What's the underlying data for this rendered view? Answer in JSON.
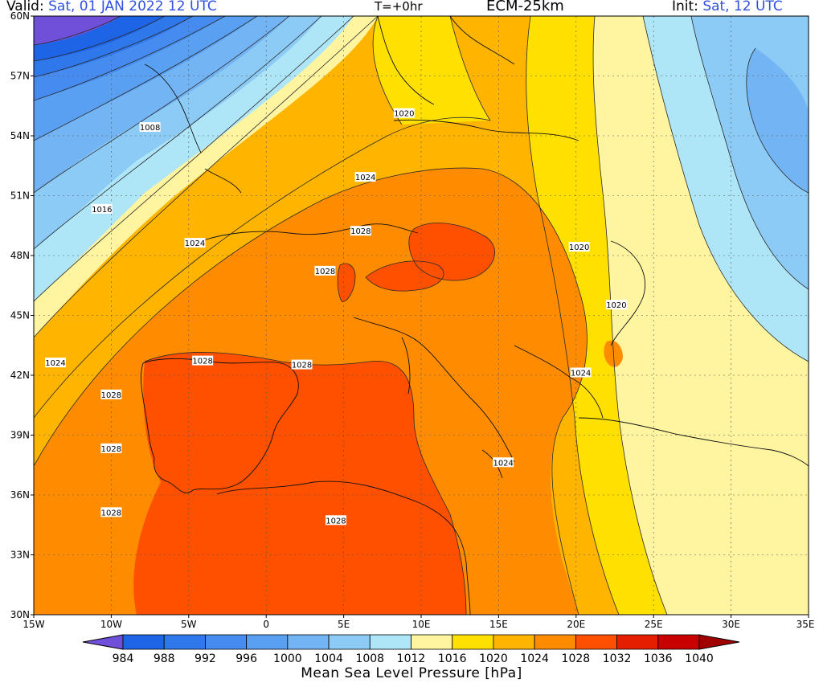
{
  "header": {
    "valid_label": "Valid:",
    "valid_value": "Sat, 01 JAN 2022 12 UTC",
    "time_step": "T=+0hr",
    "model": "ECM-25km",
    "init_label": "Init:",
    "init_value": "Sat, 12 UTC"
  },
  "map": {
    "lon_range": [
      -15,
      35
    ],
    "lat_range": [
      30,
      60
    ],
    "lon_ticks": [
      "15W",
      "10W",
      "5W",
      "0",
      "5E",
      "10E",
      "15E",
      "20E",
      "25E",
      "30E",
      "35E"
    ],
    "lat_ticks": [
      "60N",
      "57N",
      "54N",
      "51N",
      "48N",
      "45N",
      "42N",
      "39N",
      "36N",
      "33N",
      "30N"
    ],
    "grid": true,
    "contour_labels": [
      {
        "text": "1008",
        "lon": -13.0,
        "lat": 60.0,
        "colorHint": "#4060e0"
      },
      {
        "text": "1008",
        "lon": -13.0,
        "lat": 60.0
      },
      {
        "text": "1008",
        "lon": -13.0,
        "lat": 60.0
      }
    ]
  },
  "chart_data": {
    "type": "heatmap",
    "title": "Mean Sea Level Pressure [hPa]",
    "units": "hPa",
    "colorbar_levels": [
      "984",
      "988",
      "992",
      "996",
      "1000",
      "1004",
      "1008",
      "1012",
      "1016",
      "1020",
      "1024",
      "1028",
      "1032",
      "1036",
      "1040"
    ],
    "colorbar_colors": [
      "#7050d8",
      "#1e64e6",
      "#2f78ec",
      "#468cf0",
      "#5aa0f2",
      "#73b4f4",
      "#8ccbf6",
      "#aee6f8",
      "#fff5a0",
      "#ffe000",
      "#ffb400",
      "#ff8c00",
      "#ff5000",
      "#e61e00",
      "#c80000",
      "#a00000"
    ],
    "colorbar_extend": "both",
    "pressure_labels": [
      {
        "text": "1008",
        "lon": -7.5,
        "lat": 54.4
      },
      {
        "text": "1016",
        "lon": -10.6,
        "lat": 50.3
      },
      {
        "text": "1024",
        "lon": -4.6,
        "lat": 48.6
      },
      {
        "text": "1024",
        "lon": -13.6,
        "lat": 42.6
      },
      {
        "text": "1028",
        "lon": 6.1,
        "lat": 49.2
      },
      {
        "text": "1028",
        "lon": 3.8,
        "lat": 47.2
      },
      {
        "text": "1028",
        "lon": -4.1,
        "lat": 42.7
      },
      {
        "text": "1028",
        "lon": 2.3,
        "lat": 42.5
      },
      {
        "text": "1028",
        "lon": -10.0,
        "lat": 41.0
      },
      {
        "text": "1028",
        "lon": -10.0,
        "lat": 38.3
      },
      {
        "text": "1028",
        "lon": -10.0,
        "lat": 35.1
      },
      {
        "text": "1028",
        "lon": 4.5,
        "lat": 34.7
      },
      {
        "text": "1024",
        "lon": 6.4,
        "lat": 51.9
      },
      {
        "text": "1020",
        "lon": 8.9,
        "lat": 55.1
      },
      {
        "text": "1020",
        "lon": 20.2,
        "lat": 48.4
      },
      {
        "text": "1020",
        "lon": 22.6,
        "lat": 45.5
      },
      {
        "text": "1024",
        "lon": 20.3,
        "lat": 42.1
      },
      {
        "text": "1024",
        "lon": 15.3,
        "lat": 37.6
      }
    ]
  }
}
